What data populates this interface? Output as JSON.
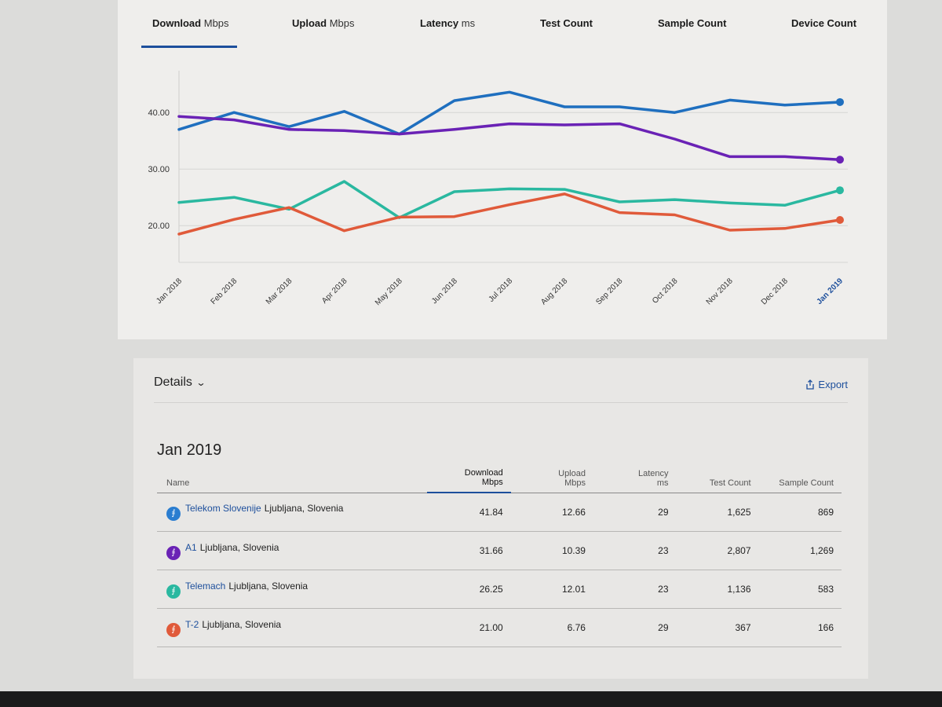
{
  "tabs": [
    {
      "bold": "Download",
      "unit": "Mbps"
    },
    {
      "bold": "Upload",
      "unit": "Mbps"
    },
    {
      "bold": "Latency",
      "unit": "ms"
    },
    {
      "bold": "Test Count",
      "unit": ""
    },
    {
      "bold": "Sample Count",
      "unit": ""
    },
    {
      "bold": "Device Count",
      "unit": ""
    }
  ],
  "chart_data": {
    "type": "line",
    "title": "",
    "xlabel": "",
    "ylabel": "",
    "categories": [
      "Jan 2018",
      "Feb 2018",
      "Mar 2018",
      "Apr 2018",
      "May 2018",
      "Jun 2018",
      "Jul 2018",
      "Aug 2018",
      "Sep 2018",
      "Oct 2018",
      "Nov 2018",
      "Dec 2018",
      "Jan 2019"
    ],
    "y_ticks": [
      "20.00",
      "30.00",
      "40.00"
    ],
    "ylim": [
      13.5,
      46
    ],
    "series": [
      {
        "name": "Telekom Slovenije",
        "color": "#1f6fbf",
        "values": [
          37.0,
          40.0,
          37.5,
          40.2,
          36.2,
          42.1,
          43.6,
          41.0,
          41.0,
          40.0,
          42.2,
          41.3,
          41.84
        ]
      },
      {
        "name": "A1",
        "color": "#6a22b5",
        "values": [
          39.3,
          38.7,
          37.0,
          36.8,
          36.2,
          37.0,
          38.0,
          37.8,
          38.0,
          35.3,
          32.2,
          32.2,
          31.66
        ]
      },
      {
        "name": "Telemach",
        "color": "#2ab8a0",
        "values": [
          24.1,
          25.0,
          22.9,
          27.8,
          21.4,
          26.0,
          26.5,
          26.4,
          24.2,
          24.6,
          24.0,
          23.6,
          26.25
        ]
      },
      {
        "name": "T-2",
        "color": "#e05a3a",
        "values": [
          18.5,
          21.1,
          23.2,
          19.1,
          21.5,
          21.6,
          23.7,
          25.6,
          22.3,
          21.9,
          19.2,
          19.5,
          21.0
        ]
      }
    ]
  },
  "details": {
    "title": "Details",
    "chevron": "⌄",
    "export_label": "Export",
    "period": "Jan 2019",
    "columns": [
      {
        "l1": "Name",
        "l2": ""
      },
      {
        "l1": "Download",
        "l2": "Mbps"
      },
      {
        "l1": "Upload",
        "l2": "Mbps"
      },
      {
        "l1": "Latency",
        "l2": "ms"
      },
      {
        "l1": "Test Count",
        "l2": ""
      },
      {
        "l1": "Sample Count",
        "l2": ""
      }
    ],
    "rows": [
      {
        "operator": "Telekom Slovenije",
        "location": "Ljubljana, Slovenia",
        "color": "#2a7dd0",
        "download": "41.84",
        "upload": "12.66",
        "latency": "29",
        "tests": "1,625",
        "samples": "869"
      },
      {
        "operator": "A1",
        "location": "Ljubljana, Slovenia",
        "color": "#6a22b5",
        "download": "31.66",
        "upload": "10.39",
        "latency": "23",
        "tests": "2,807",
        "samples": "1,269"
      },
      {
        "operator": "Telemach",
        "location": "Ljubljana, Slovenia",
        "color": "#2ab8a0",
        "download": "26.25",
        "upload": "12.01",
        "latency": "23",
        "tests": "1,136",
        "samples": "583"
      },
      {
        "operator": "T-2",
        "location": "Ljubljana, Slovenia",
        "color": "#e05a3a",
        "download": "21.00",
        "upload": "6.76",
        "latency": "29",
        "tests": "367",
        "samples": "166"
      }
    ]
  }
}
